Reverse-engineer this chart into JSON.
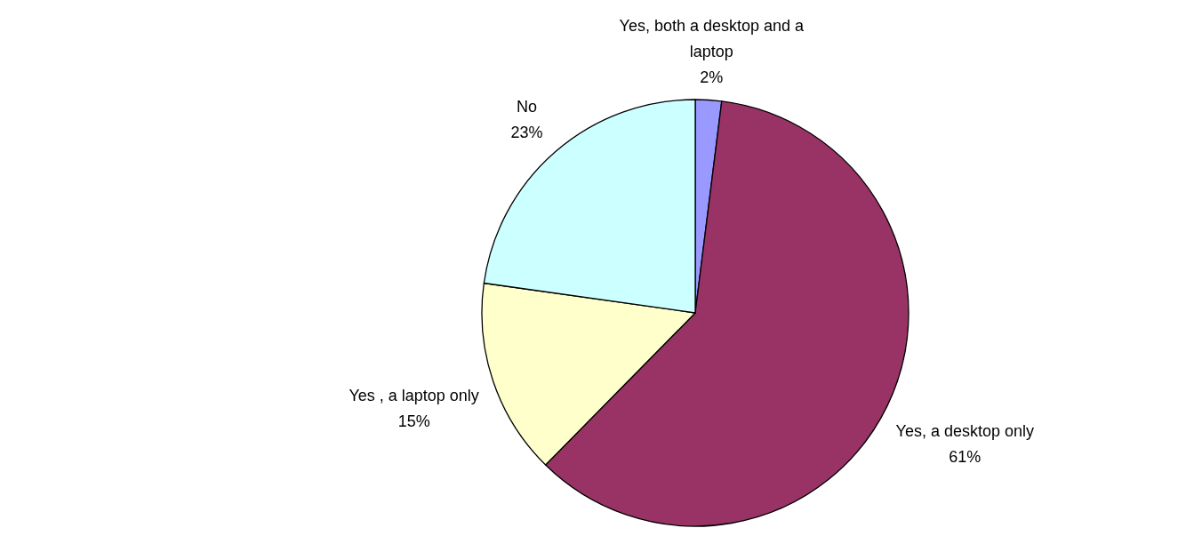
{
  "chart_data": {
    "type": "pie",
    "categories": [
      "Yes, both a desktop and a laptop",
      "Yes, a desktop only",
      "Yes , a laptop only",
      "No"
    ],
    "values": [
      2,
      61,
      15,
      23
    ],
    "colors": [
      "#9999ff",
      "#993366",
      "#ffffcc",
      "#ccffff"
    ],
    "value_labels": [
      "2%",
      "61%",
      "15%",
      "23%"
    ]
  }
}
